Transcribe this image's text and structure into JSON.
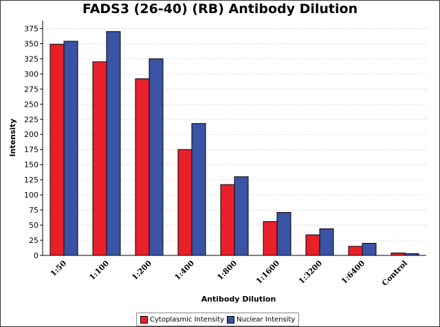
{
  "chart_data": {
    "type": "bar",
    "title": "FADS3 (26-40) (RB) Antibody Dilution",
    "xlabel": "Antibody Dilution",
    "ylabel": "Intensity",
    "categories": [
      "1:50",
      "1:100",
      "1:200",
      "1:400",
      "1:800",
      "1:1600",
      "1:3200",
      "1:6400",
      "Control"
    ],
    "series": [
      {
        "name": "Cytoplasmic Intensity",
        "color": "#e8202a",
        "values": [
          349,
          320,
          292,
          175,
          117,
          56,
          34,
          15,
          4
        ]
      },
      {
        "name": "Nuclear Intensity",
        "color": "#3a53a4",
        "values": [
          354,
          370,
          325,
          218,
          130,
          71,
          44,
          20,
          3
        ]
      }
    ],
    "yticks": [
      0,
      25,
      50,
      75,
      100,
      125,
      150,
      175,
      200,
      225,
      250,
      275,
      300,
      325,
      350,
      375
    ],
    "ylim": [
      0,
      388
    ],
    "grid": true,
    "legend_position": "bottom"
  }
}
